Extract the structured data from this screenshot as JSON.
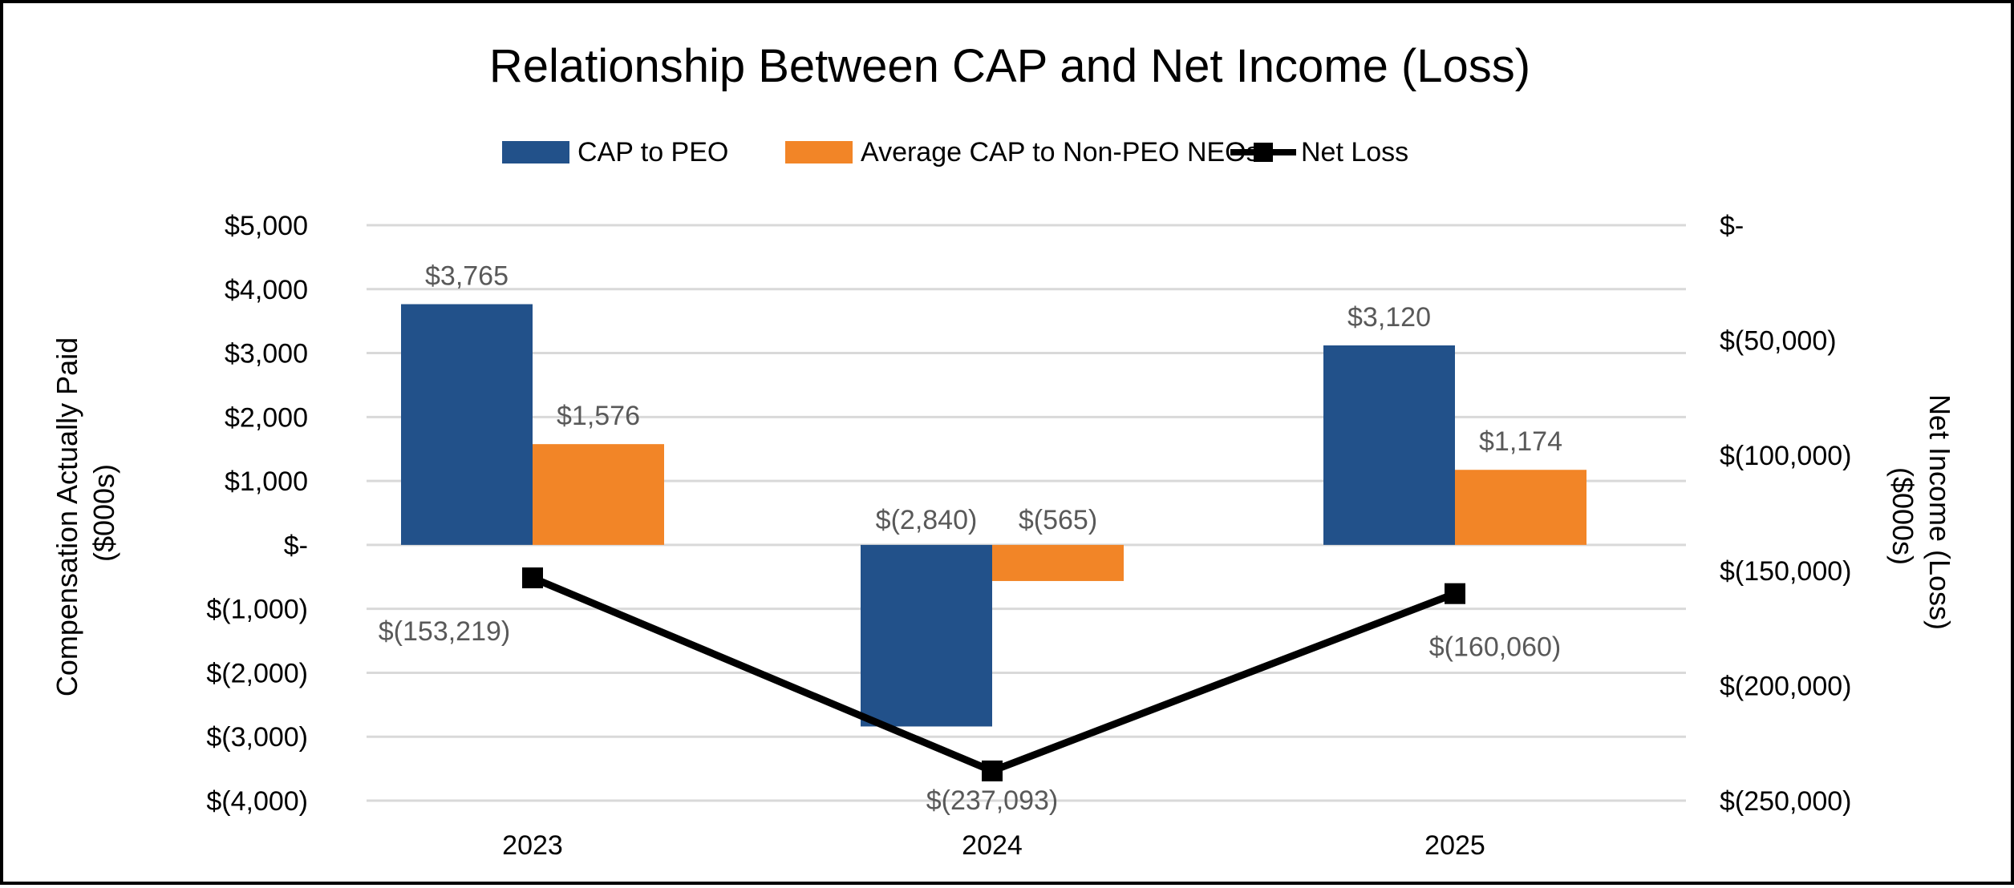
{
  "chart_data": {
    "type": "bar+line",
    "title": "Relationship Between CAP and Net Income (Loss)",
    "categories": [
      "2023",
      "2024",
      "2025"
    ],
    "y_left": {
      "label": "Compensation Actually Paid ($000s)",
      "label_lines": [
        "Compensation Actually Paid",
        "($000s)"
      ],
      "range": [
        -4000,
        5000
      ],
      "ticks": [
        5000,
        4000,
        3000,
        2000,
        1000,
        0,
        -1000,
        -2000,
        -3000,
        -4000
      ],
      "tick_labels": [
        "$5,000",
        "$4,000",
        "$3,000",
        "$2,000",
        "$1,000",
        "$-",
        "$(1,000)",
        "$(2,000)",
        "$(3,000)",
        "$(4,000)"
      ]
    },
    "y_right": {
      "label": "Net Income (Loss) ($000s)",
      "label_lines": [
        "Net Income (Loss)",
        "($000s)"
      ],
      "range": [
        -250000,
        0
      ],
      "ticks": [
        0,
        -50000,
        -100000,
        -150000,
        -200000,
        -250000
      ],
      "tick_labels": [
        "$-",
        "$(50,000)",
        "$(100,000)",
        "$(150,000)",
        "$(200,000)",
        "$(250,000)"
      ]
    },
    "series": [
      {
        "name": "CAP to PEO",
        "type": "bar",
        "axis": "left",
        "color": "#22518A",
        "values": [
          3765,
          -2840,
          3120
        ],
        "labels": [
          "$3,765",
          "$(2,840)",
          "$3,120"
        ]
      },
      {
        "name": "Average CAP to Non-PEO NEOs",
        "type": "bar",
        "axis": "left",
        "color": "#F28527",
        "values": [
          1576,
          -565,
          1174
        ],
        "labels": [
          "$1,576",
          "$(565)",
          "$1,174"
        ]
      },
      {
        "name": "Net Loss",
        "type": "line",
        "axis": "right",
        "color": "#000000",
        "marker": "square",
        "values": [
          -153219,
          -237093,
          -160060
        ],
        "labels": [
          "$(153,219)",
          "$(237,093)",
          "$(160,060)"
        ]
      }
    ],
    "legend_position": "top",
    "grid": true
  }
}
